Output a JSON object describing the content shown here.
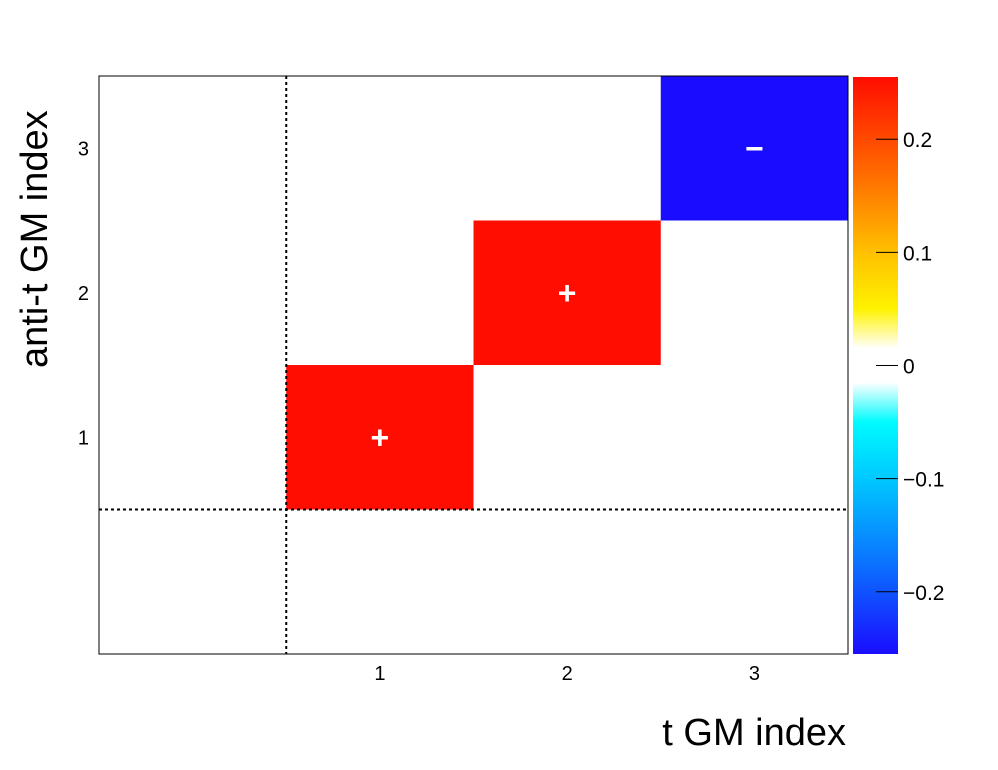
{
  "chart_data": {
    "type": "heatmap",
    "xlabel": "t GM index",
    "ylabel": "anti-t GM index",
    "x_ticks": [
      "1",
      "2",
      "3"
    ],
    "y_ticks": [
      "1",
      "2",
      "3"
    ],
    "xlim": [
      -0.5,
      3.5
    ],
    "ylim": [
      -0.5,
      3.5
    ],
    "cells": [
      {
        "x": 1,
        "y": 1,
        "value": 0.25,
        "sign": "+",
        "color": "#ff0d00"
      },
      {
        "x": 2,
        "y": 2,
        "value": 0.25,
        "sign": "+",
        "color": "#ff0d00"
      },
      {
        "x": 3,
        "y": 3,
        "value": -0.25,
        "sign": "−",
        "color": "#1a0dff"
      }
    ],
    "colorbar": {
      "range": [
        -0.255,
        0.255
      ],
      "ticks": [
        {
          "value": 0.2,
          "label": "0.2"
        },
        {
          "value": 0.1,
          "label": "0.1"
        },
        {
          "value": 0,
          "label": "0"
        },
        {
          "value": -0.1,
          "label": "−0.1"
        },
        {
          "value": -0.2,
          "label": "−0.2"
        }
      ],
      "stops": [
        {
          "value": -0.255,
          "color": "#1a0dff"
        },
        {
          "value": -0.17,
          "color": "#0a78ff"
        },
        {
          "value": -0.1,
          "color": "#00c8ff"
        },
        {
          "value": -0.05,
          "color": "#00fbff"
        },
        {
          "value": -0.015,
          "color": "#ffffff"
        },
        {
          "value": 0.015,
          "color": "#ffffff"
        },
        {
          "value": 0.05,
          "color": "#fff200"
        },
        {
          "value": 0.1,
          "color": "#ffc000"
        },
        {
          "value": 0.17,
          "color": "#ff6a00"
        },
        {
          "value": 0.255,
          "color": "#ff0d00"
        }
      ]
    },
    "divider_lines": {
      "x": 0.5,
      "y": 0.5,
      "style": "dotted"
    }
  }
}
